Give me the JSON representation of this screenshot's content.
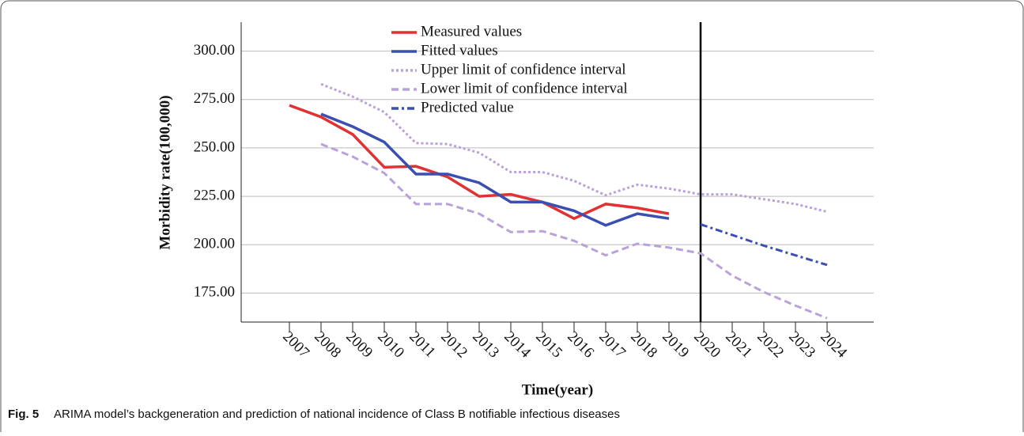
{
  "chart_data": {
    "type": "line",
    "y_label": "Morbidity rate(100,000)",
    "x_label": "Time(year)",
    "caption_label": "Fig. 5",
    "caption": "ARIMA model’s backgeneration and prediction of national incidence of Class B notifiable infectious diseases",
    "categories": [
      "2007",
      "2008",
      "2009",
      "2010",
      "2011",
      "2012",
      "2013",
      "2014",
      "2015",
      "2016",
      "2017",
      "2018",
      "2019",
      "2020",
      "2021",
      "2022",
      "2023",
      "2024"
    ],
    "series": [
      {
        "name": "Measured values",
        "color": "#e03232",
        "dash": "none",
        "values": [
          272,
          266,
          257,
          240,
          240.5,
          235,
          225,
          226,
          222,
          213.5,
          221,
          219,
          216,
          null,
          null,
          null,
          null,
          null
        ]
      },
      {
        "name": "Fitted values",
        "color": "#3a4fb0",
        "dash": "none",
        "values": [
          null,
          267.5,
          261,
          253,
          236.5,
          236.5,
          232,
          222,
          222,
          217.5,
          210,
          216,
          213.5,
          null,
          null,
          null,
          null,
          null
        ]
      },
      {
        "name": "Upper limit of confidence interval",
        "color": "#b9a2d9",
        "dash": "3,3",
        "values": [
          null,
          283,
          276.5,
          268.5,
          252.5,
          252,
          247.5,
          237.5,
          237.5,
          233,
          225.5,
          231,
          229,
          226,
          226,
          223.5,
          221,
          217
        ]
      },
      {
        "name": "Lower limit of confidence interval",
        "color": "#b9a2d9",
        "dash": "9,5",
        "values": [
          null,
          252,
          245.5,
          237,
          221,
          221,
          216,
          206.5,
          207,
          202,
          194.5,
          200.5,
          198.5,
          195.5,
          184,
          175.5,
          168.5,
          162
        ]
      },
      {
        "name": "Predicted value",
        "color": "#3a4fb0",
        "dash": "9,4,3,4",
        "values": [
          null,
          null,
          null,
          null,
          null,
          null,
          null,
          null,
          null,
          null,
          null,
          null,
          null,
          210.5,
          205,
          199.5,
          194.5,
          189.5
        ]
      }
    ],
    "ylim": [
      160,
      315
    ],
    "yticks": [
      {
        "value": 175,
        "label": "175.00"
      },
      {
        "value": 200,
        "label": "200.00"
      },
      {
        "value": 225,
        "label": "225.00"
      },
      {
        "value": 250,
        "label": "250.00"
      },
      {
        "value": 275,
        "label": "275.00"
      },
      {
        "value": 300,
        "label": "300.00"
      }
    ],
    "grid": true,
    "legend": "top"
  }
}
